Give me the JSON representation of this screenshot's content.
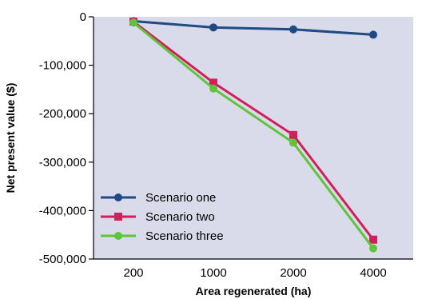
{
  "chart_data": {
    "type": "line",
    "categories": [
      "200",
      "1000",
      "2000",
      "4000"
    ],
    "xlabel": "Area regenerated (ha)",
    "ylabel": "Net present value ($)",
    "ylim": [
      -500000,
      0
    ],
    "yticks": [
      0,
      -100000,
      -200000,
      -300000,
      -400000,
      -500000
    ],
    "ytick_labels": [
      "0",
      "-100,000",
      "-200,000",
      "-300,000",
      "-400,000",
      "-500,000"
    ],
    "grid": false,
    "legend_position": "bottom-left",
    "plot_background": "#d9dbea",
    "series": [
      {
        "name": "Scenario one",
        "values": [
          -9000,
          -22000,
          -26000,
          -37000
        ],
        "color": "#1f4a84",
        "marker": "circle"
      },
      {
        "name": "Scenario two",
        "values": [
          -10000,
          -136000,
          -244000,
          -460000
        ],
        "color": "#d01f5a",
        "marker": "square"
      },
      {
        "name": "Scenario three",
        "values": [
          -12000,
          -148000,
          -260000,
          -478000
        ],
        "color": "#5ec43a",
        "marker": "circle"
      }
    ]
  }
}
